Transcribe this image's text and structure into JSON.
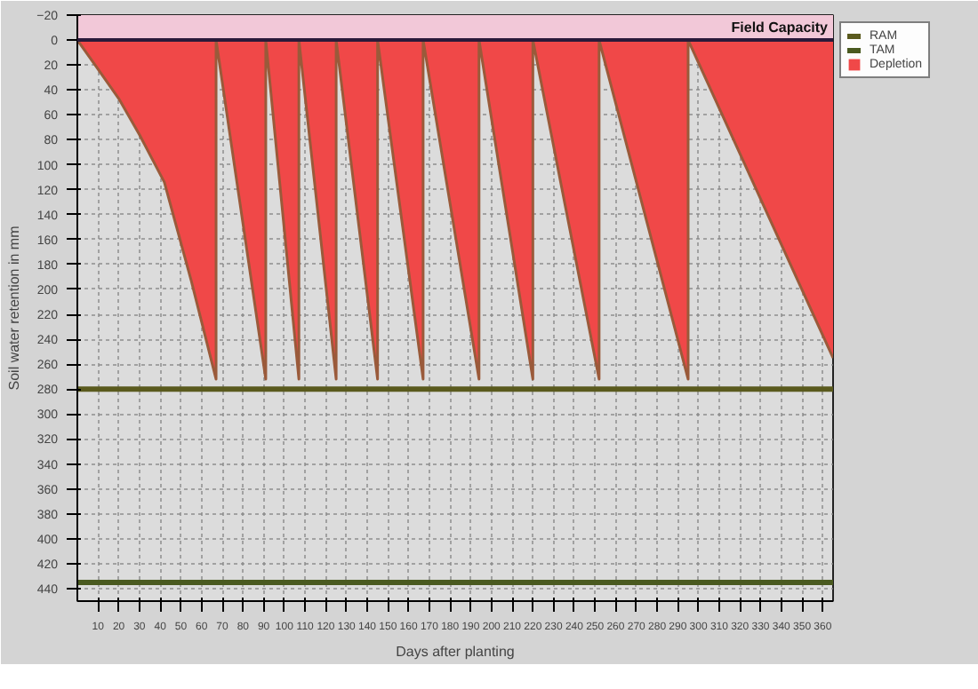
{
  "chart_data": {
    "type": "line",
    "xlabel": "Days after planting",
    "ylabel": "Soil water retention in mm",
    "xlim": [
      0,
      365
    ],
    "ylim": [
      450,
      -20
    ],
    "xticks": [
      10,
      20,
      30,
      40,
      50,
      60,
      70,
      80,
      90,
      100,
      110,
      120,
      130,
      140,
      150,
      160,
      170,
      180,
      190,
      200,
      210,
      220,
      230,
      240,
      250,
      260,
      270,
      280,
      290,
      300,
      310,
      320,
      330,
      340,
      350,
      360
    ],
    "yticks": [
      -20,
      0,
      20,
      40,
      60,
      80,
      100,
      120,
      140,
      160,
      180,
      200,
      220,
      240,
      260,
      280,
      300,
      320,
      340,
      360,
      380,
      400,
      420,
      440
    ],
    "grid": true,
    "legend": "right",
    "line_style": "solid",
    "bands": [
      {
        "axis": "y",
        "from": -20,
        "to": 0,
        "label": "Field Capacity",
        "color": "#f2c8d8"
      }
    ],
    "ref_lines": [
      {
        "axis": "y",
        "value": 0,
        "color": "#2a1a3a"
      }
    ],
    "series": [
      {
        "name": "RAM",
        "color": "#5a5a1e",
        "x": [
          0,
          365
        ],
        "values": [
          280,
          280
        ]
      },
      {
        "name": "TAM",
        "color": "#4a5a20",
        "x": [
          0,
          365
        ],
        "values": [
          435,
          435
        ]
      },
      {
        "name": "Depletion",
        "type": "area",
        "color": "#f04848",
        "x": [
          0,
          9,
          20,
          30,
          42,
          55,
          67,
          67,
          91,
          91,
          107,
          107,
          125,
          125,
          145,
          145,
          167,
          167,
          194,
          194,
          220,
          220,
          252,
          252,
          295,
          295,
          365
        ],
        "values": [
          0,
          21,
          47,
          76,
          114,
          193,
          272,
          0,
          272,
          0,
          272,
          0,
          272,
          0,
          272,
          0,
          272,
          0,
          272,
          0,
          272,
          0,
          272,
          0,
          272,
          0,
          255
        ]
      }
    ]
  }
}
